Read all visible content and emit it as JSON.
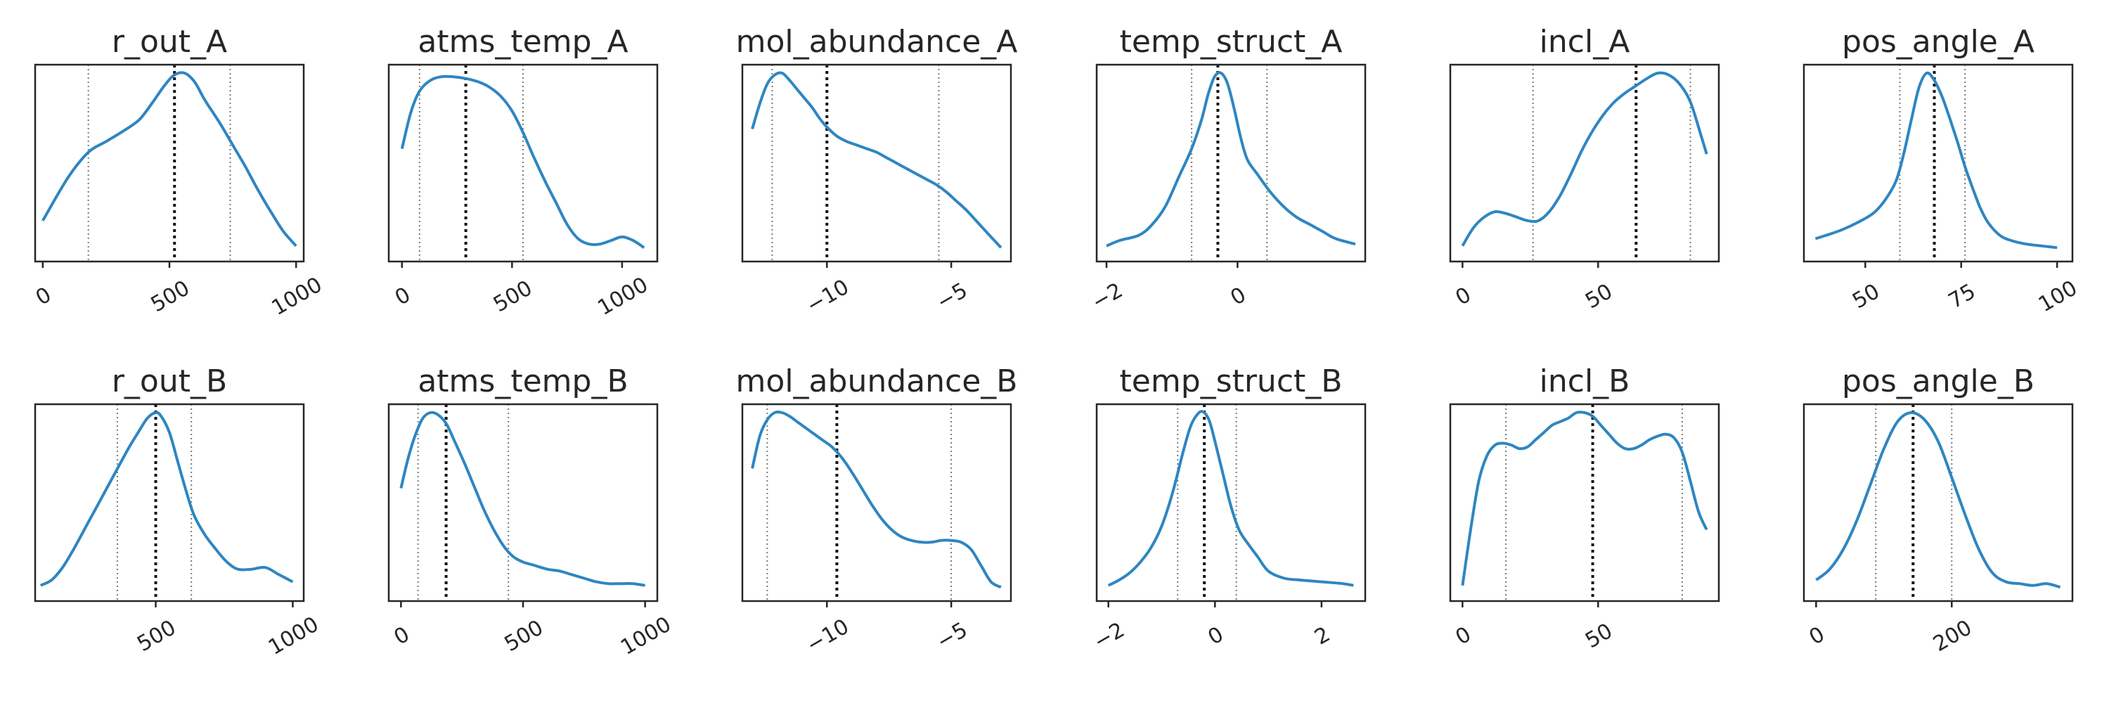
{
  "chart_data": [
    {
      "type": "line",
      "title": "r_out_A",
      "xlim": [
        -30,
        1030
      ],
      "xticks": [
        {
          "v": 0,
          "label": "0"
        },
        {
          "v": 500,
          "label": "500"
        },
        {
          "v": 1000,
          "label": "1000"
        }
      ],
      "vlines": {
        "q_low": 180,
        "median": 520,
        "q_high": 740
      },
      "x": [
        0,
        100,
        180,
        250,
        320,
        380,
        430,
        480,
        520,
        560,
        600,
        640,
        700,
        750,
        800,
        850,
        900,
        950,
        1000
      ],
      "y": [
        0.18,
        0.42,
        0.56,
        0.62,
        0.68,
        0.74,
        0.83,
        0.93,
        0.99,
        1.0,
        0.95,
        0.85,
        0.72,
        0.6,
        0.48,
        0.35,
        0.23,
        0.12,
        0.04
      ]
    },
    {
      "type": "line",
      "title": "atms_temp_A",
      "xlim": [
        -60,
        1160
      ],
      "xticks": [
        {
          "v": 0,
          "label": "0"
        },
        {
          "v": 500,
          "label": "500"
        },
        {
          "v": 1000,
          "label": "1000"
        }
      ],
      "vlines": {
        "q_low": 80,
        "median": 290,
        "q_high": 550
      },
      "x": [
        0,
        40,
        80,
        130,
        180,
        230,
        290,
        350,
        400,
        450,
        500,
        550,
        600,
        650,
        700,
        750,
        800,
        850,
        900,
        950,
        1000,
        1050,
        1100
      ],
      "y": [
        0.58,
        0.78,
        0.9,
        0.96,
        0.98,
        0.98,
        0.97,
        0.95,
        0.92,
        0.87,
        0.79,
        0.67,
        0.53,
        0.4,
        0.28,
        0.16,
        0.08,
        0.05,
        0.05,
        0.07,
        0.09,
        0.07,
        0.03
      ]
    },
    {
      "type": "line",
      "title": "mol_abundance_A",
      "xlim": [
        -13.4,
        -2.6
      ],
      "xticks": [
        {
          "v": -10,
          "label": "−10"
        },
        {
          "v": -5,
          "label": "−5"
        }
      ],
      "vlines": {
        "q_low": -12.2,
        "median": -10.0,
        "q_high": -5.5
      },
      "x": [
        -13,
        -12.7,
        -12.4,
        -12.1,
        -11.8,
        -11.5,
        -11.2,
        -10.9,
        -10.6,
        -10.3,
        -10.0,
        -9.6,
        -9.2,
        -8.8,
        -8.4,
        -8.0,
        -7.6,
        -7.2,
        -6.8,
        -6.4,
        -6.0,
        -5.6,
        -5.2,
        -4.8,
        -4.4,
        -4.0,
        -3.6,
        -3.2,
        -3.0
      ],
      "y": [
        0.69,
        0.83,
        0.94,
        0.99,
        1.0,
        0.96,
        0.91,
        0.86,
        0.81,
        0.75,
        0.7,
        0.65,
        0.62,
        0.6,
        0.58,
        0.56,
        0.53,
        0.5,
        0.47,
        0.44,
        0.41,
        0.38,
        0.34,
        0.29,
        0.24,
        0.18,
        0.12,
        0.06,
        0.03
      ]
    },
    {
      "type": "line",
      "title": "temp_struct_A",
      "xlim": [
        -2.15,
        1.95
      ],
      "xticks": [
        {
          "v": -2,
          "label": "−2"
        },
        {
          "v": 0,
          "label": "0"
        }
      ],
      "vlines": {
        "q_low": -0.7,
        "median": -0.3,
        "q_high": 0.45
      },
      "x": [
        -2,
        -1.8,
        -1.5,
        -1.3,
        -1.1,
        -0.9,
        -0.7,
        -0.55,
        -0.45,
        -0.35,
        -0.25,
        -0.15,
        -0.05,
        0.05,
        0.15,
        0.3,
        0.5,
        0.7,
        0.9,
        1.1,
        1.3,
        1.5,
        1.8
      ],
      "y": [
        0.04,
        0.07,
        0.1,
        0.16,
        0.26,
        0.42,
        0.58,
        0.74,
        0.88,
        0.98,
        1.0,
        0.94,
        0.8,
        0.64,
        0.52,
        0.44,
        0.34,
        0.26,
        0.2,
        0.16,
        0.12,
        0.08,
        0.05
      ]
    },
    {
      "type": "line",
      "title": "incl_A",
      "xlim": [
        -4.5,
        94.5
      ],
      "xticks": [
        {
          "v": 0,
          "label": "0"
        },
        {
          "v": 50,
          "label": "50"
        }
      ],
      "vlines": {
        "q_low": 26,
        "median": 64,
        "q_high": 84
      },
      "x": [
        0,
        4,
        8,
        12,
        16,
        20,
        24,
        28,
        32,
        36,
        40,
        44,
        48,
        52,
        56,
        60,
        64,
        68,
        72,
        76,
        80,
        84,
        88,
        90
      ],
      "y": [
        0.04,
        0.14,
        0.2,
        0.23,
        0.22,
        0.2,
        0.18,
        0.18,
        0.23,
        0.32,
        0.44,
        0.57,
        0.68,
        0.77,
        0.84,
        0.89,
        0.93,
        0.97,
        1.0,
        0.99,
        0.94,
        0.84,
        0.65,
        0.55
      ]
    },
    {
      "type": "line",
      "title": "pos_angle_A",
      "xlim": [
        34,
        104
      ],
      "xticks": [
        {
          "v": 50,
          "label": "50"
        },
        {
          "v": 75,
          "label": "75"
        },
        {
          "v": 100,
          "label": "100"
        }
      ],
      "vlines": {
        "q_low": 59,
        "median": 68,
        "q_high": 76
      },
      "x": [
        37,
        40,
        44,
        48,
        52,
        55,
        58,
        60,
        62,
        64,
        66,
        68,
        70,
        72,
        74,
        76,
        78,
        80,
        82,
        85,
        88,
        92,
        96,
        100
      ],
      "y": [
        0.08,
        0.1,
        0.13,
        0.17,
        0.22,
        0.29,
        0.4,
        0.55,
        0.74,
        0.92,
        1.0,
        0.96,
        0.87,
        0.75,
        0.62,
        0.48,
        0.36,
        0.25,
        0.17,
        0.1,
        0.07,
        0.05,
        0.04,
        0.03
      ]
    },
    {
      "type": "line",
      "title": "r_out_B",
      "xlim": [
        60,
        1040
      ],
      "xticks": [
        {
          "v": 500,
          "label": "500"
        },
        {
          "v": 1000,
          "label": "1000"
        }
      ],
      "vlines": {
        "q_low": 360,
        "median": 500,
        "q_high": 630
      },
      "x": [
        80,
        120,
        160,
        200,
        250,
        300,
        350,
        400,
        440,
        470,
        500,
        520,
        550,
        580,
        610,
        640,
        680,
        720,
        760,
        800,
        850,
        900,
        950,
        1000
      ],
      "y": [
        0.04,
        0.07,
        0.14,
        0.24,
        0.38,
        0.52,
        0.66,
        0.8,
        0.9,
        0.97,
        1.0,
        0.98,
        0.89,
        0.73,
        0.57,
        0.43,
        0.32,
        0.24,
        0.17,
        0.13,
        0.13,
        0.14,
        0.1,
        0.06
      ]
    },
    {
      "type": "line",
      "title": "atms_temp_B",
      "xlim": [
        -50,
        1050
      ],
      "xticks": [
        {
          "v": 0,
          "label": "0"
        },
        {
          "v": 500,
          "label": "500"
        },
        {
          "v": 1000,
          "label": "1000"
        }
      ],
      "vlines": {
        "q_low": 70,
        "median": 185,
        "q_high": 440
      },
      "x": [
        0,
        30,
        60,
        90,
        120,
        150,
        185,
        220,
        260,
        300,
        340,
        380,
        420,
        460,
        500,
        550,
        600,
        650,
        700,
        750,
        800,
        850,
        900,
        950,
        1000
      ],
      "y": [
        0.58,
        0.75,
        0.88,
        0.97,
        1.0,
        0.99,
        0.94,
        0.84,
        0.72,
        0.59,
        0.46,
        0.35,
        0.26,
        0.2,
        0.17,
        0.15,
        0.13,
        0.12,
        0.1,
        0.08,
        0.06,
        0.05,
        0.05,
        0.05,
        0.04
      ]
    },
    {
      "type": "line",
      "title": "mol_abundance_B",
      "xlim": [
        -13.4,
        -2.6
      ],
      "xticks": [
        {
          "v": -10,
          "label": "−10"
        },
        {
          "v": -5,
          "label": "−5"
        }
      ],
      "vlines": {
        "q_low": -12.4,
        "median": -9.6,
        "q_high": -5.0
      },
      "x": [
        -13,
        -12.7,
        -12.4,
        -12.1,
        -11.8,
        -11.5,
        -11.2,
        -10.9,
        -10.6,
        -10.2,
        -9.8,
        -9.4,
        -9.0,
        -8.6,
        -8.2,
        -7.8,
        -7.4,
        -7.0,
        -6.6,
        -6.2,
        -5.8,
        -5.4,
        -5.0,
        -4.6,
        -4.2,
        -3.8,
        -3.4,
        -3.0
      ],
      "y": [
        0.69,
        0.87,
        0.96,
        1.0,
        1.0,
        0.98,
        0.95,
        0.92,
        0.89,
        0.85,
        0.81,
        0.75,
        0.67,
        0.58,
        0.49,
        0.41,
        0.35,
        0.31,
        0.29,
        0.28,
        0.28,
        0.29,
        0.29,
        0.28,
        0.24,
        0.15,
        0.06,
        0.03
      ]
    },
    {
      "type": "line",
      "title": "temp_struct_B",
      "xlim": [
        -2.22,
        2.82
      ],
      "xticks": [
        {
          "v": -2,
          "label": "−2"
        },
        {
          "v": 0,
          "label": "0"
        },
        {
          "v": 2,
          "label": "2"
        }
      ],
      "vlines": {
        "q_low": -0.7,
        "median": -0.2,
        "q_high": 0.4
      },
      "x": [
        -2,
        -1.8,
        -1.6,
        -1.4,
        -1.2,
        -1.0,
        -0.8,
        -0.6,
        -0.45,
        -0.3,
        -0.2,
        -0.1,
        0.0,
        0.15,
        0.3,
        0.45,
        0.6,
        0.8,
        1.0,
        1.3,
        1.6,
        2.0,
        2.4,
        2.6
      ],
      "y": [
        0.04,
        0.07,
        0.11,
        0.17,
        0.25,
        0.37,
        0.55,
        0.78,
        0.93,
        1.0,
        1.0,
        0.95,
        0.84,
        0.66,
        0.48,
        0.35,
        0.28,
        0.2,
        0.12,
        0.08,
        0.07,
        0.06,
        0.05,
        0.04
      ]
    },
    {
      "type": "line",
      "title": "incl_B",
      "xlim": [
        -4.5,
        94.5
      ],
      "xticks": [
        {
          "v": 0,
          "label": "0"
        },
        {
          "v": 50,
          "label": "50"
        }
      ],
      "vlines": {
        "q_low": 16,
        "median": 48,
        "q_high": 81
      },
      "x": [
        0,
        3,
        6,
        9,
        12,
        15,
        18,
        21,
        24,
        27,
        30,
        33,
        36,
        39,
        42,
        45,
        48,
        51,
        54,
        57,
        60,
        63,
        66,
        69,
        72,
        75,
        78,
        81,
        84,
        87,
        90
      ],
      "y": [
        0.04,
        0.35,
        0.62,
        0.76,
        0.82,
        0.83,
        0.82,
        0.8,
        0.81,
        0.85,
        0.89,
        0.93,
        0.95,
        0.97,
        1.0,
        1.0,
        0.98,
        0.93,
        0.88,
        0.83,
        0.8,
        0.8,
        0.82,
        0.85,
        0.87,
        0.88,
        0.86,
        0.78,
        0.62,
        0.45,
        0.35
      ]
    },
    {
      "type": "line",
      "title": "pos_angle_B",
      "xlim": [
        -18,
        378
      ],
      "xticks": [
        {
          "v": 0,
          "label": "0"
        },
        {
          "v": 200,
          "label": "200"
        }
      ],
      "vlines": {
        "q_low": 88,
        "median": 143,
        "q_high": 200
      },
      "x": [
        0,
        20,
        40,
        60,
        80,
        100,
        120,
        140,
        160,
        180,
        200,
        220,
        240,
        260,
        280,
        300,
        320,
        340,
        360
      ],
      "y": [
        0.07,
        0.13,
        0.24,
        0.4,
        0.6,
        0.8,
        0.95,
        1.0,
        0.96,
        0.84,
        0.64,
        0.43,
        0.24,
        0.11,
        0.06,
        0.05,
        0.04,
        0.05,
        0.03
      ]
    }
  ]
}
